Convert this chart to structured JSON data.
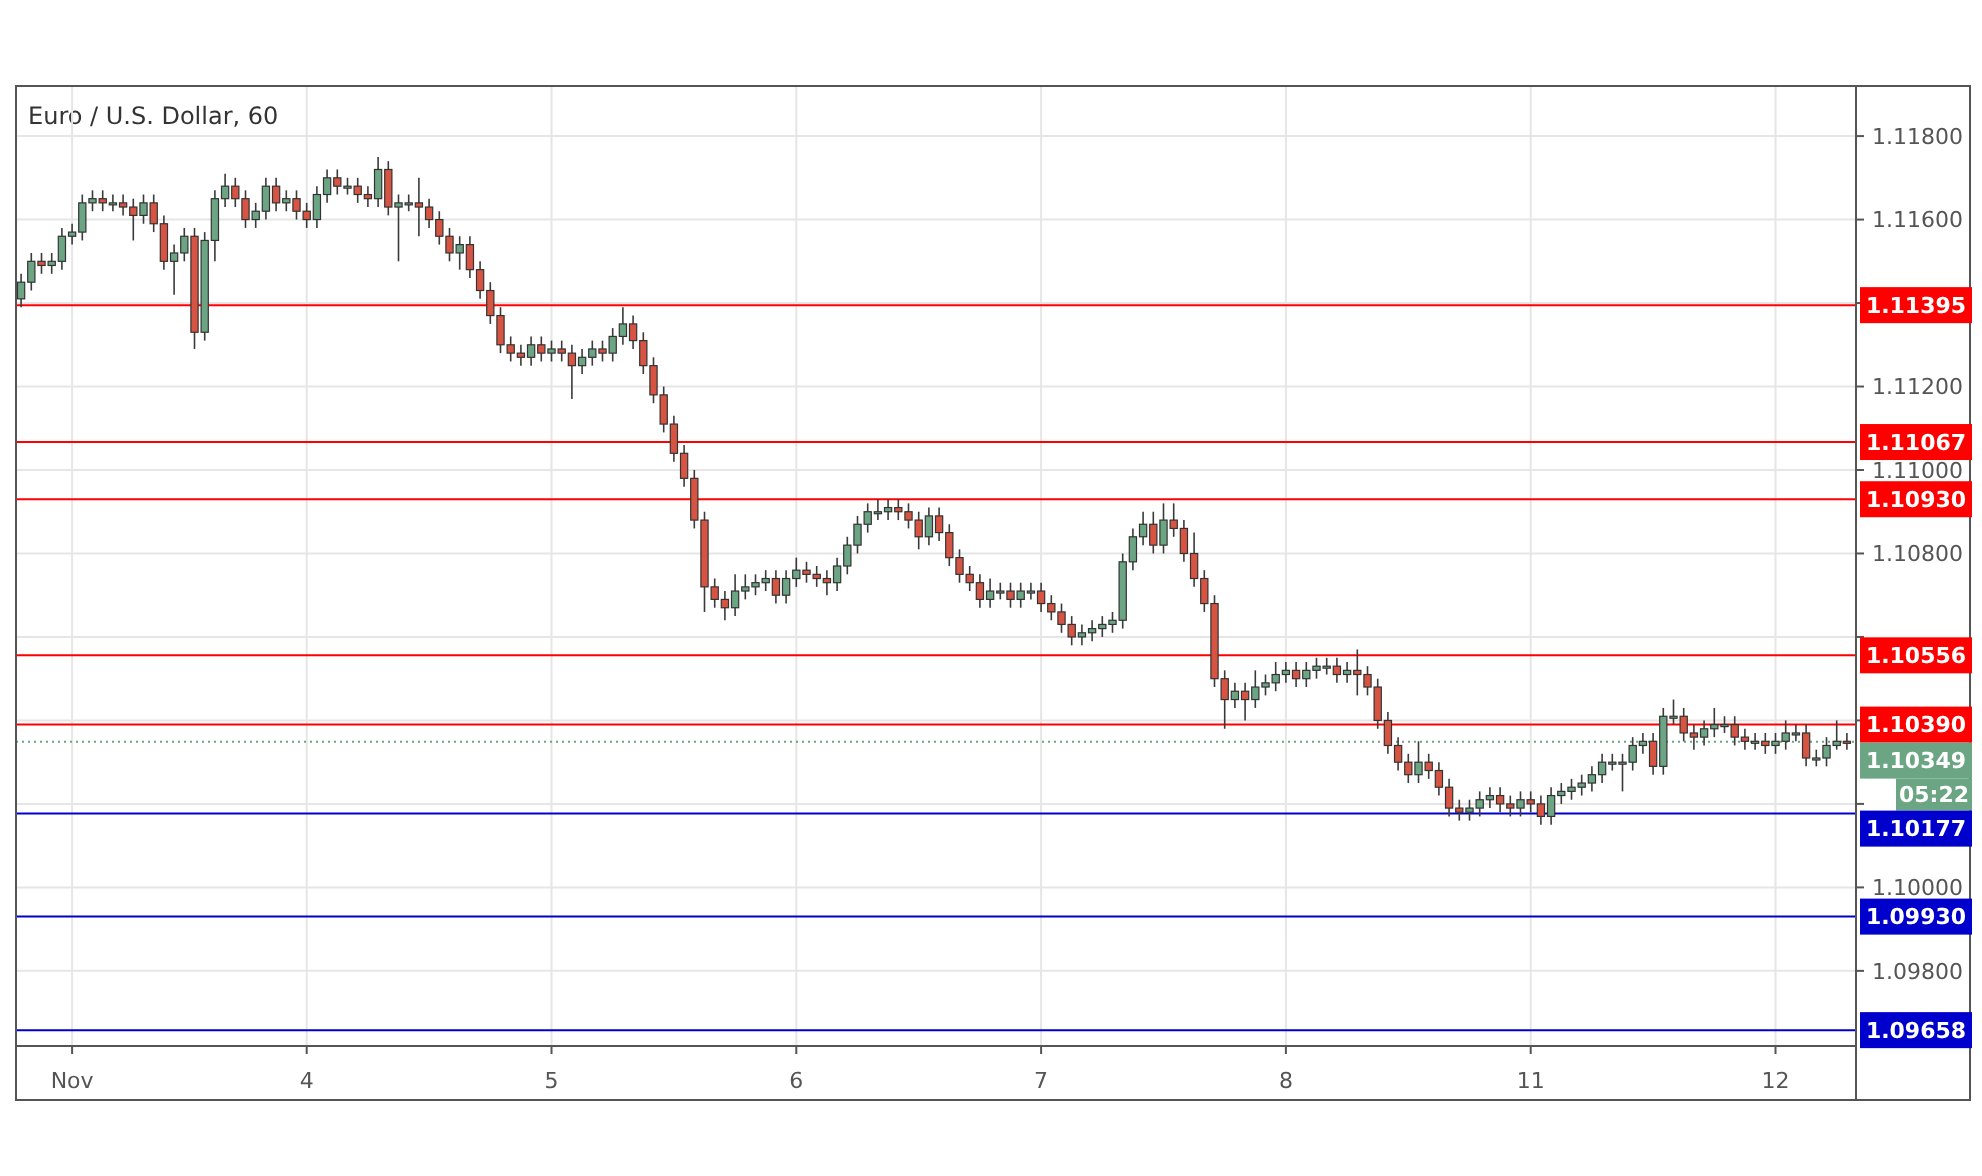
{
  "chart_data": {
    "type": "candlestick",
    "title": "Euro / U.S. Dollar, 60",
    "categories": [
      null,
      null,
      null,
      null,
      null,
      "Nov",
      null,
      null,
      null,
      null,
      null,
      null,
      null,
      null,
      null,
      null,
      null,
      null,
      null,
      null,
      null,
      null,
      null,
      null,
      null,
      null,
      null,
      null,
      "4",
      null,
      null,
      null,
      null,
      null,
      null,
      null,
      null,
      null,
      null,
      null,
      null,
      null,
      null,
      null,
      null,
      null,
      null,
      null,
      null,
      null,
      null,
      null,
      "5",
      null,
      null,
      null,
      null,
      null,
      null,
      null,
      null,
      null,
      null,
      null,
      null,
      null,
      null,
      null,
      null,
      null,
      null,
      null,
      null,
      null,
      null,
      null,
      "6",
      null,
      null,
      null,
      null,
      null,
      null,
      null,
      null,
      null,
      null,
      null,
      null,
      null,
      null,
      null,
      null,
      null,
      null,
      null,
      null,
      null,
      null,
      null,
      "7",
      null,
      null,
      null,
      null,
      null,
      null,
      null,
      null,
      null,
      null,
      null,
      null,
      null,
      null,
      null,
      null,
      null,
      null,
      null,
      null,
      null,
      null,
      null,
      "8",
      null,
      null,
      null,
      null,
      null,
      null,
      null,
      null,
      null,
      null,
      null,
      null,
      null,
      null,
      null,
      null,
      null,
      null,
      null,
      null,
      null,
      null,
      null,
      "11",
      null,
      null,
      null,
      null,
      null,
      null,
      null,
      null,
      null,
      null,
      null,
      null,
      null,
      null,
      null,
      null,
      null,
      null,
      null,
      null,
      null,
      null,
      null,
      "12",
      null,
      null,
      null,
      null,
      null,
      null,
      null
    ],
    "ohlc": [
      [
        1.1141,
        1.1147,
        1.1139,
        1.1145
      ],
      [
        1.1145,
        1.1152,
        1.1143,
        1.115
      ],
      [
        1.115,
        1.1152,
        1.1147,
        1.1149
      ],
      [
        1.1149,
        1.1152,
        1.1147,
        1.115
      ],
      [
        1.115,
        1.1158,
        1.1148,
        1.1156
      ],
      [
        1.1156,
        1.1159,
        1.1154,
        1.1157
      ],
      [
        1.1157,
        1.1166,
        1.1155,
        1.1164
      ],
      [
        1.1164,
        1.1167,
        1.1162,
        1.1165
      ],
      [
        1.1165,
        1.1167,
        1.1162,
        1.1164
      ],
      [
        1.1164,
        1.1166,
        1.1162,
        1.1164
      ],
      [
        1.1164,
        1.1166,
        1.1161,
        1.1163
      ],
      [
        1.1163,
        1.1165,
        1.1155,
        1.1161
      ],
      [
        1.1161,
        1.1166,
        1.1159,
        1.1164
      ],
      [
        1.1164,
        1.1166,
        1.1157,
        1.1159
      ],
      [
        1.1159,
        1.1161,
        1.1148,
        1.115
      ],
      [
        1.115,
        1.1154,
        1.1142,
        1.1152
      ],
      [
        1.1152,
        1.1158,
        1.115,
        1.1156
      ],
      [
        1.1156,
        1.1158,
        1.1129,
        1.1133
      ],
      [
        1.1133,
        1.1157,
        1.1131,
        1.1155
      ],
      [
        1.1155,
        1.1167,
        1.115,
        1.1165
      ],
      [
        1.1165,
        1.1171,
        1.1163,
        1.1168
      ],
      [
        1.1168,
        1.117,
        1.1163,
        1.1165
      ],
      [
        1.1165,
        1.1167,
        1.1158,
        1.116
      ],
      [
        1.116,
        1.1164,
        1.1158,
        1.1162
      ],
      [
        1.1162,
        1.117,
        1.116,
        1.1168
      ],
      [
        1.1168,
        1.117,
        1.1162,
        1.1164
      ],
      [
        1.1164,
        1.1167,
        1.1162,
        1.1165
      ],
      [
        1.1165,
        1.1167,
        1.116,
        1.1162
      ],
      [
        1.1162,
        1.1164,
        1.1158,
        1.116
      ],
      [
        1.116,
        1.1168,
        1.1158,
        1.1166
      ],
      [
        1.1166,
        1.1172,
        1.1164,
        1.117
      ],
      [
        1.117,
        1.1172,
        1.1166,
        1.1168
      ],
      [
        1.1168,
        1.117,
        1.1166,
        1.1168
      ],
      [
        1.1168,
        1.117,
        1.1164,
        1.1166
      ],
      [
        1.1166,
        1.1168,
        1.1163,
        1.1165
      ],
      [
        1.1165,
        1.1175,
        1.1163,
        1.1172
      ],
      [
        1.1172,
        1.1174,
        1.1161,
        1.1163
      ],
      [
        1.1163,
        1.1166,
        1.115,
        1.1164
      ],
      [
        1.1164,
        1.1166,
        1.1162,
        1.1164
      ],
      [
        1.1164,
        1.117,
        1.1156,
        1.1163
      ],
      [
        1.1163,
        1.1165,
        1.1158,
        1.116
      ],
      [
        1.116,
        1.1162,
        1.1154,
        1.1156
      ],
      [
        1.1156,
        1.1158,
        1.115,
        1.1152
      ],
      [
        1.1152,
        1.1156,
        1.1148,
        1.1154
      ],
      [
        1.1154,
        1.1156,
        1.1146,
        1.1148
      ],
      [
        1.1148,
        1.115,
        1.1141,
        1.1143
      ],
      [
        1.1143,
        1.1145,
        1.1135,
        1.1137
      ],
      [
        1.1137,
        1.1139,
        1.1128,
        1.113
      ],
      [
        1.113,
        1.1132,
        1.1126,
        1.1128
      ],
      [
        1.1128,
        1.113,
        1.1125,
        1.1127
      ],
      [
        1.1127,
        1.1132,
        1.1125,
        1.113
      ],
      [
        1.113,
        1.1132,
        1.1126,
        1.1128
      ],
      [
        1.1128,
        1.1131,
        1.1126,
        1.1129
      ],
      [
        1.1129,
        1.1131,
        1.1126,
        1.1128
      ],
      [
        1.1128,
        1.113,
        1.1117,
        1.1125
      ],
      [
        1.1125,
        1.1129,
        1.1123,
        1.1127
      ],
      [
        1.1127,
        1.1131,
        1.1125,
        1.1129
      ],
      [
        1.1129,
        1.1131,
        1.1126,
        1.1128
      ],
      [
        1.1128,
        1.1134,
        1.1126,
        1.1132
      ],
      [
        1.1132,
        1.1139,
        1.113,
        1.1135
      ],
      [
        1.1135,
        1.1137,
        1.1129,
        1.1131
      ],
      [
        1.1131,
        1.1133,
        1.1123,
        1.1125
      ],
      [
        1.1125,
        1.1127,
        1.1116,
        1.1118
      ],
      [
        1.1118,
        1.112,
        1.1109,
        1.1111
      ],
      [
        1.1111,
        1.1113,
        1.1102,
        1.1104
      ],
      [
        1.1104,
        1.1106,
        1.1096,
        1.1098
      ],
      [
        1.1098,
        1.11,
        1.1086,
        1.1088
      ],
      [
        1.1088,
        1.109,
        1.1066,
        1.1072
      ],
      [
        1.1072,
        1.1074,
        1.1067,
        1.1069
      ],
      [
        1.1069,
        1.1071,
        1.1064,
        1.1067
      ],
      [
        1.1067,
        1.1075,
        1.1065,
        1.1071
      ],
      [
        1.1071,
        1.1075,
        1.1069,
        1.1072
      ],
      [
        1.1072,
        1.1075,
        1.107,
        1.1073
      ],
      [
        1.1073,
        1.1076,
        1.1071,
        1.1074
      ],
      [
        1.1074,
        1.1076,
        1.1068,
        1.107
      ],
      [
        1.107,
        1.1076,
        1.1068,
        1.1074
      ],
      [
        1.1074,
        1.1079,
        1.1072,
        1.1076
      ],
      [
        1.1076,
        1.1078,
        1.1073,
        1.1075
      ],
      [
        1.1075,
        1.1077,
        1.1072,
        1.1074
      ],
      [
        1.1074,
        1.1076,
        1.107,
        1.1073
      ],
      [
        1.1073,
        1.1079,
        1.1071,
        1.1077
      ],
      [
        1.1077,
        1.1084,
        1.1075,
        1.1082
      ],
      [
        1.1082,
        1.1089,
        1.108,
        1.1087
      ],
      [
        1.1087,
        1.1092,
        1.1085,
        1.109
      ],
      [
        1.109,
        1.1093,
        1.1088,
        1.109
      ],
      [
        1.109,
        1.1093,
        1.1088,
        1.1091
      ],
      [
        1.1091,
        1.1093,
        1.1088,
        1.109
      ],
      [
        1.109,
        1.1092,
        1.1086,
        1.1088
      ],
      [
        1.1088,
        1.109,
        1.1081,
        1.1084
      ],
      [
        1.1084,
        1.1091,
        1.1082,
        1.1089
      ],
      [
        1.1089,
        1.1091,
        1.1083,
        1.1085
      ],
      [
        1.1085,
        1.1087,
        1.1077,
        1.1079
      ],
      [
        1.1079,
        1.1081,
        1.1073,
        1.1075
      ],
      [
        1.1075,
        1.1077,
        1.1071,
        1.1073
      ],
      [
        1.1073,
        1.1075,
        1.1067,
        1.1069
      ],
      [
        1.1069,
        1.1074,
        1.1067,
        1.1071
      ],
      [
        1.1071,
        1.1073,
        1.1069,
        1.1071
      ],
      [
        1.1071,
        1.1073,
        1.1067,
        1.1069
      ],
      [
        1.1069,
        1.1073,
        1.1067,
        1.1071
      ],
      [
        1.1071,
        1.1073,
        1.1069,
        1.1071
      ],
      [
        1.1071,
        1.1073,
        1.1066,
        1.1068
      ],
      [
        1.1068,
        1.107,
        1.1064,
        1.1066
      ],
      [
        1.1066,
        1.1068,
        1.1061,
        1.1063
      ],
      [
        1.1063,
        1.1065,
        1.1058,
        1.106
      ],
      [
        1.106,
        1.1063,
        1.1058,
        1.1061
      ],
      [
        1.1061,
        1.1064,
        1.1059,
        1.1062
      ],
      [
        1.1062,
        1.1065,
        1.106,
        1.1063
      ],
      [
        1.1063,
        1.1066,
        1.1061,
        1.1064
      ],
      [
        1.1064,
        1.108,
        1.1062,
        1.1078
      ],
      [
        1.1078,
        1.1086,
        1.1076,
        1.1084
      ],
      [
        1.1084,
        1.109,
        1.1082,
        1.1087
      ],
      [
        1.1087,
        1.109,
        1.108,
        1.1082
      ],
      [
        1.1082,
        1.1092,
        1.108,
        1.1088
      ],
      [
        1.1088,
        1.1092,
        1.1084,
        1.1086
      ],
      [
        1.1086,
        1.1088,
        1.1078,
        1.108
      ],
      [
        1.108,
        1.1085,
        1.1072,
        1.1074
      ],
      [
        1.1074,
        1.1076,
        1.1066,
        1.1068
      ],
      [
        1.1068,
        1.107,
        1.1048,
        1.105
      ],
      [
        1.105,
        1.1052,
        1.1038,
        1.1045
      ],
      [
        1.1045,
        1.1049,
        1.1043,
        1.1047
      ],
      [
        1.1047,
        1.1049,
        1.104,
        1.1045
      ],
      [
        1.1045,
        1.1052,
        1.1043,
        1.1048
      ],
      [
        1.1048,
        1.1051,
        1.1046,
        1.1049
      ],
      [
        1.1049,
        1.1054,
        1.1047,
        1.1051
      ],
      [
        1.1051,
        1.1054,
        1.1049,
        1.1052
      ],
      [
        1.1052,
        1.1054,
        1.1048,
        1.105
      ],
      [
        1.105,
        1.1054,
        1.1048,
        1.1052
      ],
      [
        1.1052,
        1.1055,
        1.105,
        1.1053
      ],
      [
        1.1053,
        1.1055,
        1.1051,
        1.1053
      ],
      [
        1.1053,
        1.1055,
        1.1049,
        1.1051
      ],
      [
        1.1051,
        1.1054,
        1.1049,
        1.1052
      ],
      [
        1.1052,
        1.1057,
        1.1046,
        1.1051
      ],
      [
        1.1051,
        1.1053,
        1.1046,
        1.1048
      ],
      [
        1.1048,
        1.105,
        1.1038,
        1.104
      ],
      [
        1.104,
        1.1042,
        1.1032,
        1.1034
      ],
      [
        1.1034,
        1.1036,
        1.1028,
        1.103
      ],
      [
        1.103,
        1.1032,
        1.1025,
        1.1027
      ],
      [
        1.1027,
        1.1035,
        1.1025,
        1.103
      ],
      [
        1.103,
        1.1032,
        1.1026,
        1.1028
      ],
      [
        1.1028,
        1.103,
        1.1022,
        1.1024
      ],
      [
        1.1024,
        1.1026,
        1.1017,
        1.1019
      ],
      [
        1.1019,
        1.1021,
        1.1016,
        1.1018
      ],
      [
        1.1018,
        1.1021,
        1.1016,
        1.1019
      ],
      [
        1.1019,
        1.1023,
        1.1017,
        1.1021
      ],
      [
        1.1021,
        1.1024,
        1.1019,
        1.1022
      ],
      [
        1.1022,
        1.1024,
        1.1018,
        1.102
      ],
      [
        1.102,
        1.1022,
        1.1017,
        1.1019
      ],
      [
        1.1019,
        1.1023,
        1.1017,
        1.1021
      ],
      [
        1.1021,
        1.1023,
        1.1018,
        1.102
      ],
      [
        1.102,
        1.1022,
        1.1015,
        1.1017
      ],
      [
        1.1017,
        1.1024,
        1.1015,
        1.1022
      ],
      [
        1.1022,
        1.1025,
        1.102,
        1.1023
      ],
      [
        1.1023,
        1.1026,
        1.1021,
        1.1024
      ],
      [
        1.1024,
        1.1027,
        1.1022,
        1.1025
      ],
      [
        1.1025,
        1.1029,
        1.1023,
        1.1027
      ],
      [
        1.1027,
        1.1032,
        1.1025,
        1.103
      ],
      [
        1.103,
        1.1032,
        1.1028,
        1.103
      ],
      [
        1.103,
        1.1032,
        1.1023,
        1.103
      ],
      [
        1.103,
        1.1036,
        1.1028,
        1.1034
      ],
      [
        1.1034,
        1.1037,
        1.1032,
        1.1035
      ],
      [
        1.1035,
        1.1037,
        1.1027,
        1.1029
      ],
      [
        1.1029,
        1.1043,
        1.1027,
        1.1041
      ],
      [
        1.1041,
        1.1045,
        1.1039,
        1.1041
      ],
      [
        1.1041,
        1.1043,
        1.1035,
        1.1037
      ],
      [
        1.1037,
        1.1039,
        1.1033,
        1.1036
      ],
      [
        1.1036,
        1.104,
        1.1034,
        1.1038
      ],
      [
        1.1038,
        1.1043,
        1.1036,
        1.1039
      ],
      [
        1.1039,
        1.1041,
        1.1037,
        1.1039
      ],
      [
        1.1039,
        1.1041,
        1.1034,
        1.1036
      ],
      [
        1.1036,
        1.1038,
        1.1033,
        1.1035
      ],
      [
        1.1035,
        1.1037,
        1.1033,
        1.1035
      ],
      [
        1.1035,
        1.1037,
        1.1032,
        1.1034
      ],
      [
        1.1034,
        1.1037,
        1.1032,
        1.1035
      ],
      [
        1.1035,
        1.104,
        1.1033,
        1.1037
      ],
      [
        1.1037,
        1.1039,
        1.1035,
        1.1037
      ],
      [
        1.1037,
        1.1039,
        1.1029,
        1.1031
      ],
      [
        1.1031,
        1.1033,
        1.1029,
        1.1031
      ],
      [
        1.1031,
        1.1036,
        1.1029,
        1.1034
      ],
      [
        1.1034,
        1.104,
        1.1033,
        1.1035
      ],
      [
        1.1035,
        1.1037,
        1.1033,
        1.10349
      ]
    ],
    "ylim": [
      1.0962,
      1.1192
    ],
    "yticks": [
      {
        "value": 1.098,
        "label": "1.09800"
      },
      {
        "value": 1.1,
        "label": "1.10000"
      },
      {
        "value": 1.102,
        "label": null
      },
      {
        "value": 1.104,
        "label": null
      },
      {
        "value": 1.106,
        "label": null
      },
      {
        "value": 1.108,
        "label": "1.10800"
      },
      {
        "value": 1.11,
        "label": "1.11000"
      },
      {
        "value": 1.112,
        "label": "1.11200"
      },
      {
        "value": 1.114,
        "label": null
      },
      {
        "value": 1.116,
        "label": "1.11600"
      },
      {
        "value": 1.118,
        "label": "1.11800"
      }
    ],
    "grid": true,
    "ref_lines": [
      {
        "axis": "y",
        "value": 1.11395,
        "label": "1.11395",
        "color": "#ff0000"
      },
      {
        "axis": "y",
        "value": 1.11067,
        "label": "1.11067",
        "color": "#ff0000"
      },
      {
        "axis": "y",
        "value": 1.1093,
        "label": "1.10930",
        "color": "#ff0000"
      },
      {
        "axis": "y",
        "value": 1.10556,
        "label": "1.10556",
        "color": "#ff0000"
      },
      {
        "axis": "y",
        "value": 1.1039,
        "label": "1.10390",
        "color": "#ff0000"
      },
      {
        "axis": "y",
        "value": 1.10349,
        "label": "1.10349",
        "color": "#6ba583",
        "line_style": "dotted"
      },
      {
        "axis": "y",
        "value": 1.10177,
        "label": "1.10177",
        "color": "#0000cc"
      },
      {
        "axis": "y",
        "value": 1.0993,
        "label": "1.09930",
        "color": "#0000cc"
      },
      {
        "axis": "y",
        "value": 1.09658,
        "label": "1.09658",
        "color": "#0000cc"
      }
    ],
    "annotations": [
      "05:22"
    ]
  }
}
